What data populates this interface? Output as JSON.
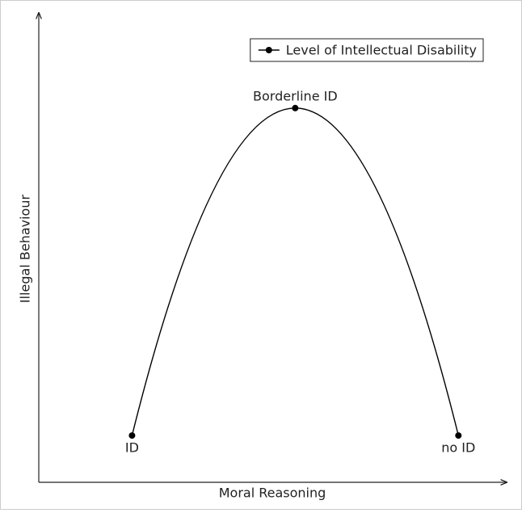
{
  "chart_data": {
    "type": "line",
    "x_label": "Moral Reasoning",
    "y_label": "Illegal Behaviour",
    "x": [
      2,
      5.5,
      9
    ],
    "series": [
      {
        "name": "Level of Intellectual Disability",
        "color": "#000000",
        "values": [
          1,
          8,
          1
        ],
        "point_labels": [
          "ID",
          "Borderline ID",
          "no ID"
        ]
      }
    ],
    "xlim": [
      0,
      10
    ],
    "ylim": [
      0,
      10
    ],
    "legend": "upper right"
  }
}
